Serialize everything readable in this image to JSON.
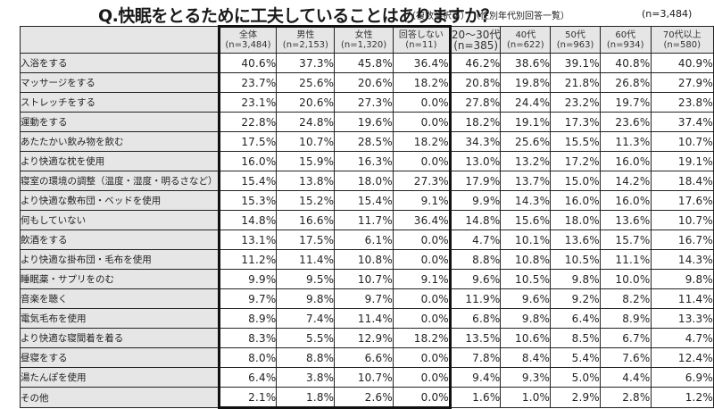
{
  "header": {
    "title": "Q.快眠をとるために工夫していることはありますか？",
    "note_multi": "（複数選択可）",
    "note_breakdown": "（性別年代別回答一覧）",
    "total_n": "(n=3,484)"
  },
  "columns": [
    {
      "label": "全体",
      "n": "(n=3,484)"
    },
    {
      "label": "男性",
      "n": "(n=2,153)"
    },
    {
      "label": "女性",
      "n": "(n=1,320)"
    },
    {
      "label": "回答しない",
      "n": "(n=11)"
    },
    {
      "label": "20～30代",
      "n": "(n=385)"
    },
    {
      "label": "40代",
      "n": "(n=622)"
    },
    {
      "label": "50代",
      "n": "(n=963)"
    },
    {
      "label": "60代",
      "n": "(n=934)"
    },
    {
      "label": "70代以上",
      "n": "(n=580)"
    }
  ],
  "rows": [
    {
      "label": "入浴をする",
      "values": [
        "40.6%",
        "37.3%",
        "45.8%",
        "36.4%",
        "46.2%",
        "38.6%",
        "39.1%",
        "40.8%",
        "40.9%"
      ]
    },
    {
      "label": "マッサージをする",
      "values": [
        "23.7%",
        "25.6%",
        "20.6%",
        "18.2%",
        "20.8%",
        "19.8%",
        "21.8%",
        "26.8%",
        "27.9%"
      ]
    },
    {
      "label": "ストレッチをする",
      "values": [
        "23.1%",
        "20.6%",
        "27.3%",
        "0.0%",
        "27.8%",
        "24.4%",
        "23.2%",
        "19.7%",
        "23.8%"
      ]
    },
    {
      "label": "運動をする",
      "values": [
        "22.8%",
        "24.8%",
        "19.6%",
        "0.0%",
        "18.2%",
        "19.1%",
        "17.3%",
        "23.6%",
        "37.4%"
      ]
    },
    {
      "label": "あたたかい飲み物を飲む",
      "values": [
        "17.5%",
        "10.7%",
        "28.5%",
        "18.2%",
        "34.3%",
        "25.6%",
        "15.5%",
        "11.3%",
        "10.7%"
      ]
    },
    {
      "label": "より快適な枕を使用",
      "values": [
        "16.0%",
        "15.9%",
        "16.3%",
        "0.0%",
        "13.0%",
        "13.2%",
        "17.2%",
        "16.0%",
        "19.1%"
      ]
    },
    {
      "label": "寝室の環境の調整（温度・湿度・明るさなど）",
      "values": [
        "15.4%",
        "13.8%",
        "18.0%",
        "27.3%",
        "17.9%",
        "13.7%",
        "15.0%",
        "14.2%",
        "18.4%"
      ]
    },
    {
      "label": "より快適な敷布団・ベッドを使用",
      "values": [
        "15.3%",
        "15.2%",
        "15.4%",
        "9.1%",
        "9.9%",
        "14.3%",
        "16.0%",
        "16.0%",
        "17.6%"
      ]
    },
    {
      "label": "何もしていない",
      "values": [
        "14.8%",
        "16.6%",
        "11.7%",
        "36.4%",
        "14.8%",
        "15.6%",
        "18.0%",
        "13.6%",
        "10.7%"
      ]
    },
    {
      "label": "飲酒をする",
      "values": [
        "13.1%",
        "17.5%",
        "6.1%",
        "0.0%",
        "4.7%",
        "10.1%",
        "13.6%",
        "15.7%",
        "16.7%"
      ]
    },
    {
      "label": "より快適な掛布団・毛布を使用",
      "values": [
        "11.2%",
        "11.4%",
        "10.8%",
        "0.0%",
        "8.8%",
        "10.8%",
        "10.5%",
        "11.1%",
        "14.3%"
      ]
    },
    {
      "label": "睡眠薬・サプリをのむ",
      "values": [
        "9.9%",
        "9.5%",
        "10.7%",
        "9.1%",
        "9.6%",
        "10.5%",
        "9.8%",
        "10.0%",
        "9.8%"
      ]
    },
    {
      "label": "音楽を聴く",
      "values": [
        "9.7%",
        "9.8%",
        "9.7%",
        "0.0%",
        "11.9%",
        "9.6%",
        "9.2%",
        "8.2%",
        "11.4%"
      ]
    },
    {
      "label": "電気毛布を使用",
      "values": [
        "8.9%",
        "7.4%",
        "11.4%",
        "0.0%",
        "6.8%",
        "9.8%",
        "6.4%",
        "8.9%",
        "13.3%"
      ]
    },
    {
      "label": "より快適な寝間着を着る",
      "values": [
        "8.3%",
        "5.5%",
        "12.9%",
        "18.2%",
        "13.5%",
        "10.6%",
        "8.5%",
        "6.7%",
        "4.7%"
      ]
    },
    {
      "label": "昼寝をする",
      "values": [
        "8.0%",
        "8.8%",
        "6.6%",
        "0.0%",
        "7.8%",
        "8.4%",
        "5.4%",
        "7.6%",
        "12.4%"
      ]
    },
    {
      "label": "湯たんぽを使用",
      "values": [
        "6.4%",
        "3.8%",
        "10.7%",
        "0.0%",
        "9.4%",
        "9.3%",
        "5.0%",
        "4.4%",
        "6.9%"
      ]
    },
    {
      "label": "その他",
      "values": [
        "2.1%",
        "1.8%",
        "2.6%",
        "0.0%",
        "1.6%",
        "1.0%",
        "2.9%",
        "2.8%",
        "1.2%"
      ]
    }
  ],
  "colors": {
    "label_bg": "#e6e6e6",
    "header_bg": "#e6e6e6",
    "cell_bg": "#ffffff",
    "border": "#222222"
  }
}
